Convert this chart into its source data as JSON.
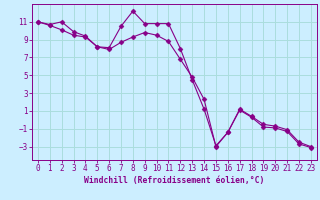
{
  "xlabel": "Windchill (Refroidissement éolien,°C)",
  "x_values": [
    0,
    1,
    2,
    3,
    4,
    5,
    6,
    7,
    8,
    9,
    10,
    11,
    12,
    13,
    14,
    15,
    16,
    17,
    18,
    19,
    20,
    21,
    22,
    23
  ],
  "line1_y": [
    11.0,
    10.7,
    11.0,
    9.9,
    9.4,
    8.2,
    8.1,
    10.5,
    12.2,
    10.8,
    10.8,
    10.8,
    8.0,
    4.5,
    1.2,
    -2.9,
    -1.4,
    1.2,
    0.4,
    -0.5,
    -0.7,
    -1.1,
    -2.5,
    -3.0
  ],
  "line2_y": [
    11.0,
    10.6,
    10.1,
    9.5,
    9.3,
    8.2,
    7.9,
    8.7,
    9.3,
    9.8,
    9.5,
    8.8,
    6.8,
    4.8,
    2.3,
    -3.0,
    -1.4,
    1.1,
    0.3,
    -0.8,
    -0.9,
    -1.3,
    -2.7,
    -3.1
  ],
  "line_color": "#880088",
  "marker": "D",
  "marker_size": 2.5,
  "bg_color": "#cceeff",
  "grid_color": "#aadddd",
  "ylim": [
    -4.5,
    13.0
  ],
  "xlim": [
    -0.5,
    23.5
  ],
  "yticks": [
    -3,
    -1,
    1,
    3,
    5,
    7,
    9,
    11
  ],
  "xticks": [
    0,
    1,
    2,
    3,
    4,
    5,
    6,
    7,
    8,
    9,
    10,
    11,
    12,
    13,
    14,
    15,
    16,
    17,
    18,
    19,
    20,
    21,
    22,
    23
  ],
  "tick_color": "#880088",
  "label_fontsize": 5.8,
  "tick_fontsize": 5.5,
  "linewidth": 0.8
}
